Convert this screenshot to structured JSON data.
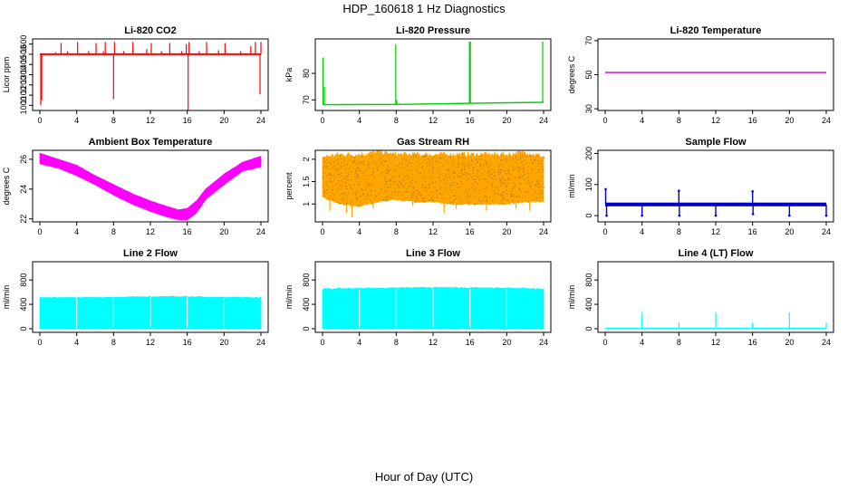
{
  "title": "HDP_160618  1 Hz Diagnostics",
  "xlabel": "Hour of Day (UTC)",
  "chart_data": [
    {
      "type": "line",
      "title": "Li-820 CO2",
      "ylabel": "Licor ppm",
      "color": "#ff0000",
      "xlim": [
        0,
        24
      ],
      "ylim": [
        950,
        1650
      ],
      "xticks": [
        0,
        4,
        8,
        12,
        16,
        20,
        24
      ],
      "yticks": [
        1000,
        1100,
        1200,
        1300,
        1400,
        1500,
        1600
      ],
      "series": [
        {
          "base": [
            [
              0,
              1500
            ],
            [
              24,
              1500
            ]
          ],
          "spikes": [
            [
              0.1,
              1000
            ],
            [
              0.2,
              1050
            ],
            [
              1.7,
              1520
            ],
            [
              2.3,
              1610
            ],
            [
              3.0,
              1530
            ],
            [
              4.1,
              1620
            ],
            [
              5.3,
              1530
            ],
            [
              6.1,
              1610
            ],
            [
              6.9,
              1530
            ],
            [
              7.1,
              1620
            ],
            [
              8.0,
              1060
            ],
            [
              8.1,
              1620
            ],
            [
              9.1,
              1530
            ],
            [
              10.1,
              1620
            ],
            [
              11.6,
              1550
            ],
            [
              12.1,
              1610
            ],
            [
              13.2,
              1530
            ],
            [
              14.1,
              1610
            ],
            [
              15.4,
              1530
            ],
            [
              15.9,
              1600
            ],
            [
              16.1,
              950
            ],
            [
              16.2,
              1620
            ],
            [
              17.3,
              1530
            ],
            [
              18.1,
              1620
            ],
            [
              19.4,
              1540
            ],
            [
              20.1,
              1610
            ],
            [
              21.8,
              1530
            ],
            [
              22.9,
              1580
            ],
            [
              23.4,
              1620
            ],
            [
              23.9,
              1110
            ],
            [
              24.0,
              1620
            ]
          ]
        }
      ]
    },
    {
      "type": "line",
      "title": "Li-820 Pressure",
      "ylabel": "kPa",
      "color": "#00cc00",
      "xlim": [
        0,
        24
      ],
      "ylim": [
        66,
        93
      ],
      "xticks": [
        0,
        4,
        8,
        12,
        16,
        20,
        24
      ],
      "yticks": [
        70,
        80
      ],
      "series": [
        {
          "base": [
            [
              0,
              68.2
            ],
            [
              8,
              68.3
            ],
            [
              12,
              68.5
            ],
            [
              16,
              68.7
            ],
            [
              20,
              68.9
            ],
            [
              24,
              69.1
            ]
          ],
          "spikes": [
            [
              0.05,
              86
            ],
            [
              0.2,
              75
            ],
            [
              7.95,
              91
            ],
            [
              8.05,
              70
            ],
            [
              15.95,
              92
            ],
            [
              16.05,
              92
            ],
            [
              23.9,
              92
            ]
          ]
        }
      ]
    },
    {
      "type": "line",
      "title": "Li-820 Temperature",
      "ylabel": "degrees C",
      "color": "#cc00cc",
      "xlim": [
        0,
        24
      ],
      "ylim": [
        29,
        71
      ],
      "xticks": [
        0,
        4,
        8,
        12,
        16,
        20,
        24
      ],
      "yticks": [
        30,
        50,
        70
      ],
      "series": [
        {
          "base": [
            [
              0,
              51.3
            ],
            [
              24,
              51.3
            ]
          ],
          "spikes": []
        }
      ]
    },
    {
      "type": "area",
      "title": "Ambient Box Temperature",
      "ylabel": "degrees C",
      "color": "#ff00ff",
      "xlim": [
        0,
        24
      ],
      "ylim": [
        21.8,
        26.6
      ],
      "xticks": [
        0,
        4,
        8,
        12,
        16,
        20,
        24
      ],
      "yticks": [
        22,
        24,
        26
      ],
      "series": [
        {
          "low": [
            [
              0,
              25.7
            ],
            [
              2,
              25.4
            ],
            [
              4,
              24.9
            ],
            [
              6,
              24.3
            ],
            [
              8,
              23.6
            ],
            [
              10,
              23.0
            ],
            [
              12,
              22.5
            ],
            [
              14,
              22.1
            ],
            [
              15,
              21.95
            ],
            [
              16,
              21.95
            ],
            [
              17,
              22.4
            ],
            [
              18,
              23.3
            ],
            [
              20,
              24.3
            ],
            [
              22,
              25.2
            ],
            [
              24,
              25.5
            ]
          ],
          "high": [
            [
              0,
              26.4
            ],
            [
              2,
              26.0
            ],
            [
              4,
              25.6
            ],
            [
              6,
              24.9
            ],
            [
              8,
              24.3
            ],
            [
              10,
              23.7
            ],
            [
              12,
              23.2
            ],
            [
              14,
              22.8
            ],
            [
              15,
              22.6
            ],
            [
              16,
              22.7
            ],
            [
              17,
              23.2
            ],
            [
              18,
              24.0
            ],
            [
              20,
              25.0
            ],
            [
              22,
              25.8
            ],
            [
              24,
              26.2
            ]
          ]
        }
      ]
    },
    {
      "type": "area",
      "title": "Gas Stream RH",
      "ylabel": "percent",
      "color": "#ffa500",
      "xlim": [
        0,
        24
      ],
      "ylim": [
        0.6,
        2.2
      ],
      "xticks": [
        0,
        4,
        8,
        12,
        16,
        20,
        24
      ],
      "yticks": [
        1.0,
        1.5,
        2.0
      ],
      "series": [
        {
          "low": [
            [
              0,
              1.15
            ],
            [
              2,
              1.0
            ],
            [
              4,
              0.95
            ],
            [
              6,
              1.05
            ],
            [
              8,
              1.1
            ],
            [
              10,
              1.05
            ],
            [
              12,
              1.05
            ],
            [
              14,
              1.0
            ],
            [
              16,
              1.0
            ],
            [
              18,
              1.0
            ],
            [
              20,
              1.0
            ],
            [
              22,
              1.05
            ],
            [
              24,
              1.05
            ]
          ],
          "high": [
            [
              0,
              2.05
            ],
            [
              2,
              2.1
            ],
            [
              4,
              2.1
            ],
            [
              6,
              2.15
            ],
            [
              8,
              2.1
            ],
            [
              10,
              2.1
            ],
            [
              12,
              2.1
            ],
            [
              14,
              2.1
            ],
            [
              16,
              2.1
            ],
            [
              18,
              2.1
            ],
            [
              20,
              2.1
            ],
            [
              22,
              2.15
            ],
            [
              24,
              2.05
            ]
          ],
          "dips": [
            [
              0.8,
              0.85
            ],
            [
              2.6,
              0.8
            ],
            [
              3.2,
              0.7
            ],
            [
              5.5,
              0.9
            ],
            [
              9.8,
              0.95
            ],
            [
              13.2,
              0.8
            ],
            [
              14.5,
              0.9
            ],
            [
              17.8,
              0.85
            ],
            [
              21.0,
              0.9
            ],
            [
              22.5,
              0.85
            ]
          ]
        }
      ]
    },
    {
      "type": "line",
      "title": "Sample Flow",
      "ylabel": "ml/min",
      "color": "#0000cc",
      "xlim": [
        0,
        24
      ],
      "ylim": [
        -20,
        210
      ],
      "xticks": [
        0,
        4,
        8,
        12,
        16,
        20,
        24
      ],
      "yticks": [
        0,
        100,
        200
      ],
      "series": [
        {
          "low": [
            [
              0,
              30
            ],
            [
              24,
              30
            ]
          ],
          "high": [
            [
              0,
              42
            ],
            [
              24,
              42
            ]
          ],
          "spikes": [
            [
              0.05,
              85
            ],
            [
              0.15,
              0
            ],
            [
              4.0,
              0
            ],
            [
              8.0,
              80
            ],
            [
              8.05,
              0
            ],
            [
              12.0,
              0
            ],
            [
              16.0,
              78
            ],
            [
              16.05,
              5
            ],
            [
              20.0,
              0
            ],
            [
              24.0,
              0
            ]
          ]
        }
      ]
    },
    {
      "type": "area",
      "title": "Line 2 Flow",
      "ylabel": "ml/min",
      "color": "#00ffff",
      "xlim": [
        0,
        24
      ],
      "ylim": [
        -60,
        1100
      ],
      "xticks": [
        0,
        4,
        8,
        12,
        16,
        20,
        24
      ],
      "yticks": [
        0,
        400,
        800
      ],
      "series": [
        {
          "low": [
            [
              0,
              0
            ],
            [
              24,
              0
            ]
          ],
          "high": [
            [
              0,
              510
            ],
            [
              4,
              510
            ],
            [
              8,
              515
            ],
            [
              12,
              525
            ],
            [
              16,
              525
            ],
            [
              20,
              515
            ],
            [
              24,
              510
            ]
          ],
          "gaps": [
            4,
            8,
            12,
            16,
            20
          ]
        }
      ]
    },
    {
      "type": "area",
      "title": "Line 3 Flow",
      "ylabel": "ml/min",
      "color": "#00ffff",
      "xlim": [
        0,
        24
      ],
      "ylim": [
        -60,
        1100
      ],
      "xticks": [
        0,
        4,
        8,
        12,
        16,
        20,
        24
      ],
      "yticks": [
        0,
        400,
        800
      ],
      "series": [
        {
          "low": [
            [
              0,
              0
            ],
            [
              24,
              0
            ]
          ],
          "high": [
            [
              0,
              650
            ],
            [
              4,
              660
            ],
            [
              8,
              670
            ],
            [
              12,
              675
            ],
            [
              16,
              670
            ],
            [
              20,
              665
            ],
            [
              24,
              650
            ]
          ],
          "gaps": [
            4,
            8,
            12,
            16,
            20
          ]
        }
      ]
    },
    {
      "type": "line",
      "title": "Line 4 (LT) Flow",
      "ylabel": "ml/min",
      "color": "#00ffff",
      "xlim": [
        0,
        24
      ],
      "ylim": [
        -60,
        1100
      ],
      "xticks": [
        0,
        4,
        8,
        12,
        16,
        20,
        24
      ],
      "yticks": [
        0,
        400,
        800
      ],
      "series": [
        {
          "base": [
            [
              0,
              5
            ],
            [
              24,
              5
            ]
          ],
          "spikes": [
            [
              4.0,
              270
            ],
            [
              8.0,
              100
            ],
            [
              12.0,
              270
            ],
            [
              16.0,
              100
            ],
            [
              20.0,
              270
            ],
            [
              24.0,
              100
            ]
          ]
        }
      ]
    }
  ]
}
